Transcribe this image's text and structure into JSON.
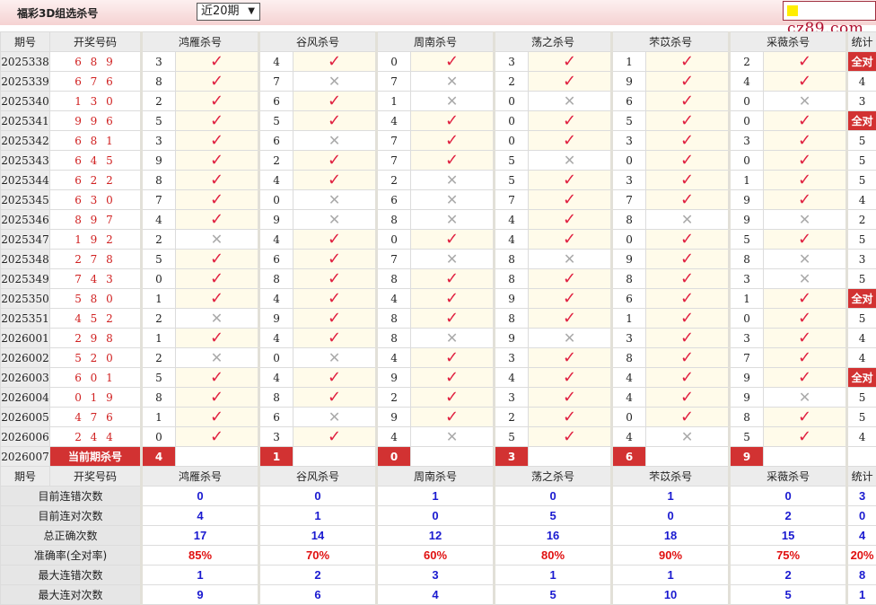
{
  "header": {
    "title": "福彩3D组选杀号",
    "range_select": "近20期",
    "logo": "cz89.com"
  },
  "columns": {
    "period": "期号",
    "draw": "开奖号码",
    "stat": "统计",
    "groups": [
      "鸿雁杀号",
      "谷风杀号",
      "周南杀号",
      "荡之杀号",
      "芣苡杀号",
      "采薇杀号"
    ]
  },
  "rows": [
    {
      "period": "2025338",
      "draw": "6 8 9",
      "kills": [
        [
          3,
          1
        ],
        [
          4,
          1
        ],
        [
          0,
          1
        ],
        [
          3,
          1
        ],
        [
          1,
          1
        ],
        [
          2,
          1
        ]
      ],
      "stat": "全对"
    },
    {
      "period": "2025339",
      "draw": "6 7 6",
      "kills": [
        [
          8,
          1
        ],
        [
          7,
          0
        ],
        [
          7,
          0
        ],
        [
          2,
          1
        ],
        [
          9,
          1
        ],
        [
          4,
          1
        ]
      ],
      "stat": "4"
    },
    {
      "period": "2025340",
      "draw": "1 3 0",
      "kills": [
        [
          2,
          1
        ],
        [
          6,
          1
        ],
        [
          1,
          0
        ],
        [
          0,
          0
        ],
        [
          6,
          1
        ],
        [
          0,
          0
        ]
      ],
      "stat": "3"
    },
    {
      "period": "2025341",
      "draw": "9 9 6",
      "kills": [
        [
          5,
          1
        ],
        [
          5,
          1
        ],
        [
          4,
          1
        ],
        [
          0,
          1
        ],
        [
          5,
          1
        ],
        [
          0,
          1
        ]
      ],
      "stat": "全对"
    },
    {
      "period": "2025342",
      "draw": "6 8 1",
      "kills": [
        [
          3,
          1
        ],
        [
          6,
          0
        ],
        [
          7,
          1
        ],
        [
          0,
          1
        ],
        [
          3,
          1
        ],
        [
          3,
          1
        ]
      ],
      "stat": "5"
    },
    {
      "period": "2025343",
      "draw": "6 4 5",
      "kills": [
        [
          9,
          1
        ],
        [
          2,
          1
        ],
        [
          7,
          1
        ],
        [
          5,
          0
        ],
        [
          0,
          1
        ],
        [
          0,
          1
        ]
      ],
      "stat": "5"
    },
    {
      "period": "2025344",
      "draw": "6 2 2",
      "kills": [
        [
          8,
          1
        ],
        [
          4,
          1
        ],
        [
          2,
          0
        ],
        [
          5,
          1
        ],
        [
          3,
          1
        ],
        [
          1,
          1
        ]
      ],
      "stat": "5"
    },
    {
      "period": "2025345",
      "draw": "6 3 0",
      "kills": [
        [
          7,
          1
        ],
        [
          0,
          0
        ],
        [
          6,
          0
        ],
        [
          7,
          1
        ],
        [
          7,
          1
        ],
        [
          9,
          1
        ]
      ],
      "stat": "4"
    },
    {
      "period": "2025346",
      "draw": "8 9 7",
      "kills": [
        [
          4,
          1
        ],
        [
          9,
          0
        ],
        [
          8,
          0
        ],
        [
          4,
          1
        ],
        [
          8,
          0
        ],
        [
          9,
          0
        ]
      ],
      "stat": "2"
    },
    {
      "period": "2025347",
      "draw": "1 9 2",
      "kills": [
        [
          2,
          0
        ],
        [
          4,
          1
        ],
        [
          0,
          1
        ],
        [
          4,
          1
        ],
        [
          0,
          1
        ],
        [
          5,
          1
        ]
      ],
      "stat": "5"
    },
    {
      "period": "2025348",
      "draw": "2 7 8",
      "kills": [
        [
          5,
          1
        ],
        [
          6,
          1
        ],
        [
          7,
          0
        ],
        [
          8,
          0
        ],
        [
          9,
          1
        ],
        [
          8,
          0
        ]
      ],
      "stat": "3"
    },
    {
      "period": "2025349",
      "draw": "7 4 3",
      "kills": [
        [
          0,
          1
        ],
        [
          8,
          1
        ],
        [
          8,
          1
        ],
        [
          8,
          1
        ],
        [
          8,
          1
        ],
        [
          3,
          0
        ]
      ],
      "stat": "5"
    },
    {
      "period": "2025350",
      "draw": "5 8 0",
      "kills": [
        [
          1,
          1
        ],
        [
          4,
          1
        ],
        [
          4,
          1
        ],
        [
          9,
          1
        ],
        [
          6,
          1
        ],
        [
          1,
          1
        ]
      ],
      "stat": "全对"
    },
    {
      "period": "2025351",
      "draw": "4 5 2",
      "kills": [
        [
          2,
          0
        ],
        [
          9,
          1
        ],
        [
          8,
          1
        ],
        [
          8,
          1
        ],
        [
          1,
          1
        ],
        [
          0,
          1
        ]
      ],
      "stat": "5"
    },
    {
      "period": "2026001",
      "draw": "2 9 8",
      "kills": [
        [
          1,
          1
        ],
        [
          4,
          1
        ],
        [
          8,
          0
        ],
        [
          9,
          0
        ],
        [
          3,
          1
        ],
        [
          3,
          1
        ]
      ],
      "stat": "4"
    },
    {
      "period": "2026002",
      "draw": "5 2 0",
      "kills": [
        [
          2,
          0
        ],
        [
          0,
          0
        ],
        [
          4,
          1
        ],
        [
          3,
          1
        ],
        [
          8,
          1
        ],
        [
          7,
          1
        ]
      ],
      "stat": "4"
    },
    {
      "period": "2026003",
      "draw": "6 0 1",
      "kills": [
        [
          5,
          1
        ],
        [
          4,
          1
        ],
        [
          9,
          1
        ],
        [
          4,
          1
        ],
        [
          4,
          1
        ],
        [
          9,
          1
        ]
      ],
      "stat": "全对"
    },
    {
      "period": "2026004",
      "draw": "0 1 9",
      "kills": [
        [
          8,
          1
        ],
        [
          8,
          1
        ],
        [
          2,
          1
        ],
        [
          3,
          1
        ],
        [
          4,
          1
        ],
        [
          9,
          0
        ]
      ],
      "stat": "5"
    },
    {
      "period": "2026005",
      "draw": "4 7 6",
      "kills": [
        [
          1,
          1
        ],
        [
          6,
          0
        ],
        [
          9,
          1
        ],
        [
          2,
          1
        ],
        [
          0,
          1
        ],
        [
          8,
          1
        ]
      ],
      "stat": "5"
    },
    {
      "period": "2026006",
      "draw": "2 4 4",
      "kills": [
        [
          0,
          1
        ],
        [
          3,
          1
        ],
        [
          4,
          0
        ],
        [
          5,
          1
        ],
        [
          4,
          0
        ],
        [
          5,
          1
        ]
      ],
      "stat": "4"
    }
  ],
  "current": {
    "period": "2026007",
    "label": "当前期杀号",
    "kills": [
      "4",
      "1",
      "0",
      "3",
      "6",
      "9"
    ]
  },
  "stats": [
    {
      "label": "目前连错次数",
      "values": [
        "0",
        "0",
        "1",
        "0",
        "1",
        "0",
        "3"
      ]
    },
    {
      "label": "目前连对次数",
      "values": [
        "4",
        "1",
        "0",
        "5",
        "0",
        "2",
        "0"
      ]
    },
    {
      "label": "总正确次数",
      "values": [
        "17",
        "14",
        "12",
        "16",
        "18",
        "15",
        "4"
      ]
    },
    {
      "label": "准确率(全对率)",
      "values": [
        "85%",
        "70%",
        "60%",
        "80%",
        "90%",
        "75%",
        "20%"
      ],
      "rate": true
    },
    {
      "label": "最大连错次数",
      "values": [
        "1",
        "2",
        "3",
        "1",
        "1",
        "2",
        "8"
      ]
    },
    {
      "label": "最大连对次数",
      "values": [
        "9",
        "6",
        "4",
        "5",
        "10",
        "5",
        "1"
      ]
    }
  ],
  "marks": {
    "correct": "check-icon",
    "wrong": "cross-icon"
  },
  "colors": {
    "accent": "#d23232",
    "check": "#e02040",
    "ok_bg": "#fffbea",
    "stat_value": "#1a1ad0"
  }
}
